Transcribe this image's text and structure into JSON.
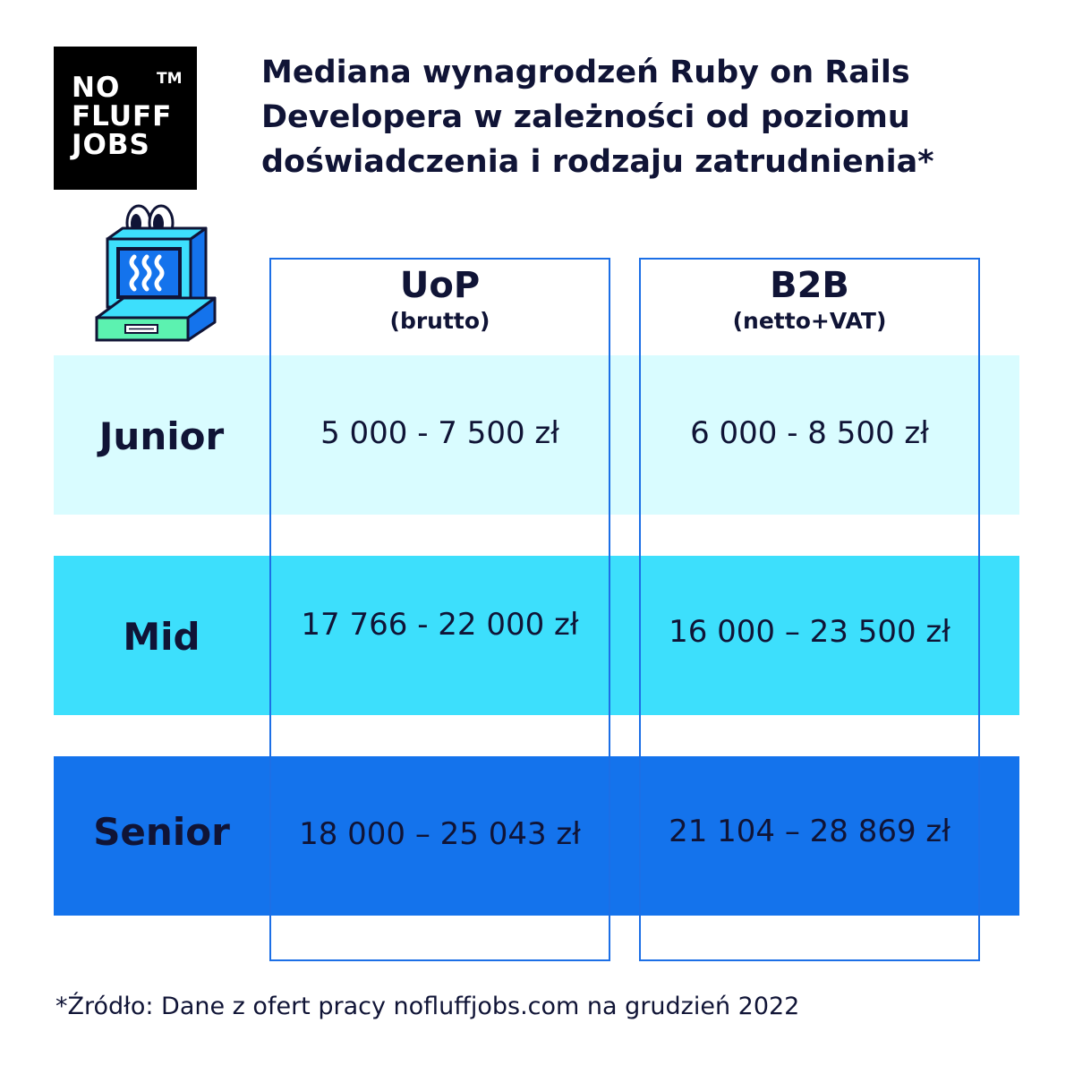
{
  "logo": {
    "lines": [
      "NO",
      "FLUFF",
      "JOBS"
    ],
    "tm": "TM"
  },
  "title": "Mediana wynagrodzeń Ruby on Rails Developera  w zależności od poziomu doświadczenia i rodzaju zatrudnienia*",
  "columns": [
    {
      "name": "UoP",
      "sub": "(brutto)"
    },
    {
      "name": "B2B",
      "sub": "(netto+VAT)"
    }
  ],
  "rows": [
    {
      "level": "Junior",
      "uop": "5 000 - 7 500 zł",
      "b2b": "6 000 - 8 500 zł"
    },
    {
      "level": "Mid",
      "uop": "17 766 - 22 000 zł",
      "b2b": "16 000 – 23 500 zł"
    },
    {
      "level": "Senior",
      "uop": "18 000 – 25 043 zł",
      "b2b": "21 104 – 28 869 zł"
    }
  ],
  "footnote": "*Źródło: Dane z ofert pracy nofluffjobs.com na grudzień 2022",
  "colors": {
    "junior_band": "#d9fcff",
    "mid_band": "#3ddffc",
    "senior_band": "#1473ec",
    "column_border": "#1c6fe6",
    "text": "#101436"
  },
  "mascot_icon": "retro-computer-with-eyes-icon"
}
